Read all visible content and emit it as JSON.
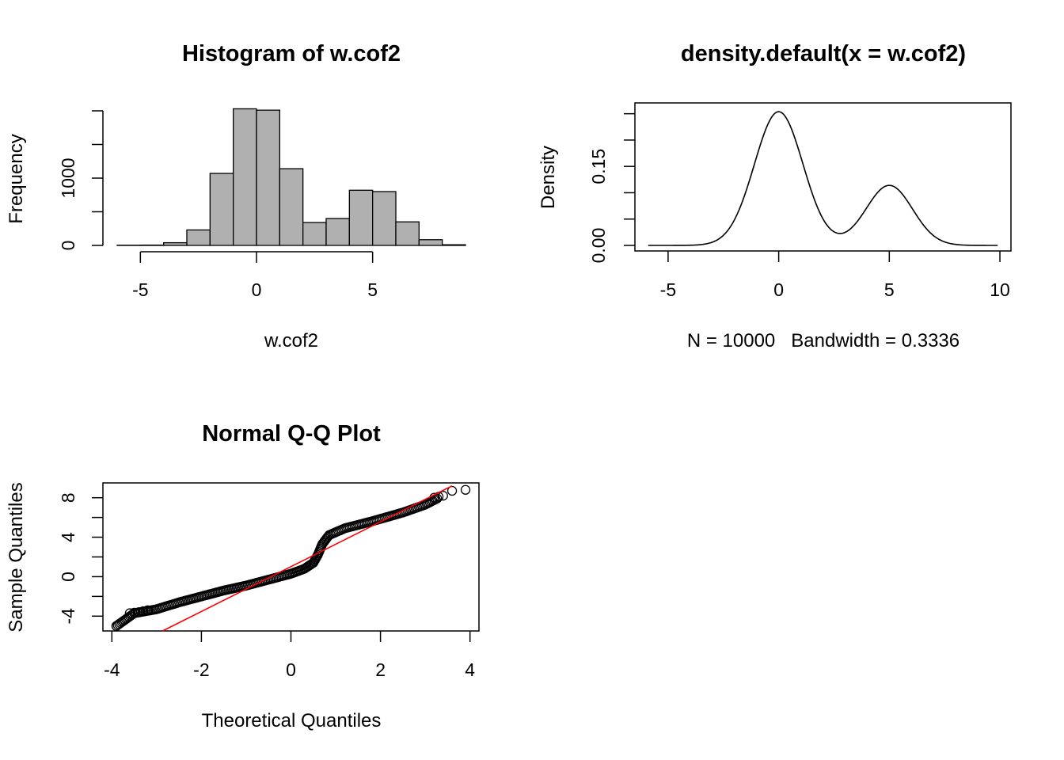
{
  "chart_data": [
    {
      "type": "bar",
      "title": "Histogram of w.cof2",
      "xlabel": "w.cof2",
      "ylabel": "Frequency",
      "xlim": [
        -6,
        9
      ],
      "ylim": [
        0,
        2200
      ],
      "xticks": [
        -5,
        0,
        5
      ],
      "yticks": [
        0,
        1000
      ],
      "bin_width": 1,
      "bins": [
        {
          "x0": -6,
          "x1": -5,
          "count": 3
        },
        {
          "x0": -5,
          "x1": -4,
          "count": 5
        },
        {
          "x0": -4,
          "x1": -3,
          "count": 40
        },
        {
          "x0": -3,
          "x1": -2,
          "count": 230
        },
        {
          "x0": -2,
          "x1": -1,
          "count": 1070
        },
        {
          "x0": -1,
          "x1": 0,
          "count": 2030
        },
        {
          "x0": 0,
          "x1": 1,
          "count": 2010
        },
        {
          "x0": 1,
          "x1": 2,
          "count": 1140
        },
        {
          "x0": 2,
          "x1": 3,
          "count": 340
        },
        {
          "x0": 3,
          "x1": 4,
          "count": 400
        },
        {
          "x0": 4,
          "x1": 5,
          "count": 820
        },
        {
          "x0": 5,
          "x1": 6,
          "count": 800
        },
        {
          "x0": 6,
          "x1": 7,
          "count": 350
        },
        {
          "x0": 7,
          "x1": 8,
          "count": 85
        },
        {
          "x0": 8,
          "x1": 9,
          "count": 10
        }
      ]
    },
    {
      "type": "line",
      "title": "density.default(x = w.cof2)",
      "xlabel": "N = 10000   Bandwidth = 0.3336",
      "ylabel": "Density",
      "xlim": [
        -6.5,
        10.5
      ],
      "ylim": [
        0,
        0.26
      ],
      "xticks": [
        -5,
        0,
        5,
        10
      ],
      "yticks": [
        0.0,
        0.15
      ],
      "ytick_labels": [
        "0.00",
        "0.15"
      ],
      "curve": {
        "components": [
          {
            "weight": 0.7,
            "mean": 0,
            "sd": 1.1
          },
          {
            "weight": 0.3,
            "mean": 5,
            "sd": 1.05
          }
        ],
        "x_from": -5.9,
        "x_to": 9.9
      }
    },
    {
      "type": "scatter",
      "title": "Normal Q-Q Plot",
      "xlabel": "Theoretical Quantiles",
      "ylabel": "Sample Quantiles",
      "xlim": [
        -4.2,
        4.2
      ],
      "ylim": [
        -5.5,
        9.5
      ],
      "xticks": [
        -4,
        -2,
        0,
        2,
        4
      ],
      "yticks": [
        -4,
        0,
        4,
        8
      ],
      "qq_line": {
        "x1": -3.0,
        "y1": -5.8,
        "x2": 3.6,
        "y2": 9.2
      },
      "quantile_path": [
        [
          -3.9,
          -5.0
        ],
        [
          -3.5,
          -3.7
        ],
        [
          -3.0,
          -3.3
        ],
        [
          -2.5,
          -2.6
        ],
        [
          -2.0,
          -2.0
        ],
        [
          -1.5,
          -1.4
        ],
        [
          -1.0,
          -0.9
        ],
        [
          -0.5,
          -0.3
        ],
        [
          0.0,
          0.3
        ],
        [
          0.3,
          0.8
        ],
        [
          0.5,
          1.4
        ],
        [
          0.6,
          2.2
        ],
        [
          0.7,
          3.3
        ],
        [
          0.85,
          4.2
        ],
        [
          1.2,
          4.9
        ],
        [
          1.8,
          5.6
        ],
        [
          2.5,
          6.5
        ],
        [
          3.0,
          7.3
        ],
        [
          3.3,
          8.0
        ]
      ],
      "tail_points": [
        [
          -3.9,
          -5.0
        ],
        [
          -3.6,
          -3.7
        ],
        [
          -3.5,
          -3.65
        ],
        [
          -3.4,
          -3.6
        ],
        [
          -3.3,
          -3.5
        ],
        [
          -3.2,
          -3.4
        ],
        [
          3.2,
          8.0
        ],
        [
          3.3,
          8.1
        ],
        [
          3.4,
          8.2
        ],
        [
          3.6,
          8.7
        ],
        [
          3.9,
          8.8
        ]
      ]
    }
  ]
}
